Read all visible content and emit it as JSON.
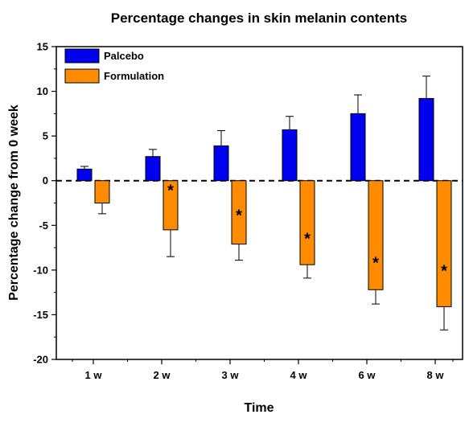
{
  "chart_data": {
    "type": "bar",
    "title": "Percentage changes in skin melanin contents",
    "xlabel": "Time",
    "ylabel": "Percentage change from 0 week",
    "categories": [
      "1 w",
      "2 w",
      "3 w",
      "4 w",
      "6 w",
      "8 w"
    ],
    "ylim": [
      -20,
      15
    ],
    "yticks": [
      15,
      10,
      5,
      0,
      -5,
      -10,
      -15,
      -20
    ],
    "reference_line": 0,
    "legend_position": "top-left",
    "series": [
      {
        "name": "Palcebo",
        "color": "#0000ee",
        "values": [
          1.3,
          2.7,
          3.9,
          5.7,
          7.5,
          9.2
        ],
        "errors": [
          0.3,
          0.8,
          1.7,
          1.5,
          2.1,
          2.5
        ]
      },
      {
        "name": "Formulation",
        "color": "#ff8c00",
        "values": [
          -2.5,
          -5.5,
          -7.1,
          -9.4,
          -12.2,
          -14.1
        ],
        "errors": [
          1.2,
          3.0,
          1.8,
          1.5,
          1.6,
          2.6
        ]
      }
    ],
    "annotations": [
      "",
      "*",
      "*",
      "*",
      "*",
      "*"
    ]
  }
}
